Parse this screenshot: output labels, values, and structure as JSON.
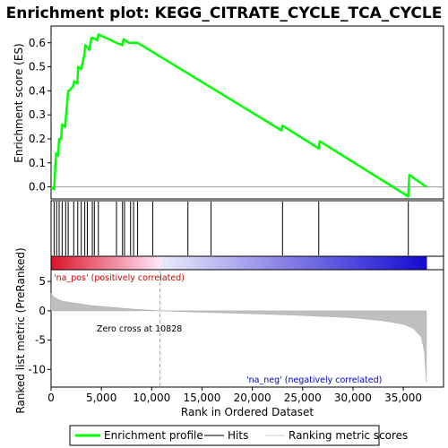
{
  "chart_data": {
    "type": "line",
    "title": "Enrichment plot: KEGG_CITRATE_CYCLE_TCA_CYCLE",
    "es_panel": {
      "ylabel": "Enrichment score (ES)",
      "ylim": [
        -0.05,
        0.67
      ],
      "yticks": [
        "0.0",
        "0.1",
        "0.2",
        "0.3",
        "0.4",
        "0.5",
        "0.6"
      ],
      "ytick_values": [
        0.0,
        0.1,
        0.2,
        0.3,
        0.4,
        0.5,
        0.6
      ],
      "series": [
        {
          "name": "Enrichment profile",
          "color": "#00ff00",
          "x": [
            0,
            300,
            400,
            500,
            700,
            800,
            1000,
            1100,
            1400,
            1500,
            1700,
            1800,
            2200,
            2300,
            2600,
            2700,
            3000,
            3300,
            3400,
            3600,
            3800,
            4000,
            4200,
            4600,
            4700,
            6500,
            7100,
            7200,
            7700,
            8000,
            8200,
            8600,
            22900,
            23000,
            26600,
            26700,
            35500,
            35600,
            37300
          ],
          "y": [
            0.0,
            -0.01,
            0.07,
            0.14,
            0.13,
            0.2,
            0.2,
            0.26,
            0.25,
            0.3,
            0.4,
            0.4,
            0.42,
            0.44,
            0.43,
            0.5,
            0.49,
            0.55,
            0.59,
            0.58,
            0.57,
            0.62,
            0.62,
            0.61,
            0.635,
            0.6,
            0.59,
            0.615,
            0.6,
            0.6,
            0.6,
            0.6,
            0.235,
            0.255,
            0.16,
            0.19,
            -0.04,
            0.05,
            0.0
          ]
        }
      ]
    },
    "hits": [
      300,
      550,
      800,
      1100,
      1450,
      1700,
      2250,
      2650,
      3000,
      3350,
      3600,
      4100,
      4300,
      4700,
      6500,
      7100,
      7300,
      7900,
      8200,
      8600,
      10100,
      13600,
      15900,
      23000,
      26600,
      35500
    ],
    "metric_panel": {
      "ylabel": "Ranked list metric (PreRanked)",
      "ylim": [
        -13,
        7
      ],
      "yticks": [
        "5",
        "0",
        "-5",
        "-10"
      ],
      "ytick_values": [
        5,
        0,
        -5,
        -10
      ],
      "xlabel": "Rank in Ordered Dataset",
      "xlim": [
        0,
        39000
      ],
      "xticks": [
        "0",
        "5,000",
        "10,000",
        "15,000",
        "20,000",
        "25,000",
        "30,000",
        "35,000"
      ],
      "xtick_values": [
        0,
        5000,
        10000,
        15000,
        20000,
        25000,
        30000,
        35000
      ],
      "metric_x": [
        0,
        300,
        1000,
        2000,
        4000,
        6000,
        8000,
        10828,
        15000,
        20000,
        25000,
        30000,
        33000,
        35000,
        36000,
        36800,
        37100,
        37250,
        37300
      ],
      "metric_y": [
        3.0,
        2.3,
        1.7,
        1.4,
        0.9,
        0.6,
        0.3,
        0.0,
        -0.25,
        -0.5,
        -0.8,
        -1.2,
        -1.7,
        -2.3,
        -3.0,
        -4.5,
        -7.0,
        -10.5,
        -12.2
      ],
      "zero_cross_label": "Zero cross at 10828",
      "zero_cross": 10828,
      "pos_label": "'na_pos' (positively correlated)",
      "neg_label": "'na_neg' (negatively correlated)"
    },
    "legend": {
      "placement": "bottom",
      "items": [
        "Enrichment profile",
        "Hits",
        "Ranking metric scores"
      ]
    },
    "colors": {
      "profile": "#00ff00",
      "hits": "#000000",
      "metric_fill": "#bfbfbf",
      "pos_label": "#cc0000",
      "neg_label": "#0000cc"
    }
  }
}
